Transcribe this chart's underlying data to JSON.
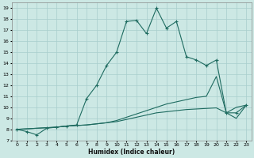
{
  "xlabel": "Humidex (Indice chaleur)",
  "background_color": "#cce8e4",
  "grid_color": "#a8cecc",
  "line_color": "#1e6b60",
  "xlim": [
    -0.5,
    23.5
  ],
  "ylim": [
    7,
    19.5
  ],
  "xticks": [
    0,
    1,
    2,
    3,
    4,
    5,
    6,
    7,
    8,
    9,
    10,
    11,
    12,
    13,
    14,
    15,
    16,
    17,
    18,
    19,
    20,
    21,
    22,
    23
  ],
  "yticks": [
    7,
    8,
    9,
    10,
    11,
    12,
    13,
    14,
    15,
    16,
    17,
    18,
    19
  ],
  "series1": [
    [
      0,
      8.0
    ],
    [
      1,
      7.8
    ],
    [
      2,
      7.5
    ],
    [
      3,
      8.1
    ],
    [
      4,
      8.2
    ],
    [
      5,
      8.3
    ],
    [
      6,
      8.4
    ],
    [
      7,
      10.8
    ],
    [
      8,
      12.0
    ],
    [
      9,
      13.8
    ],
    [
      10,
      15.0
    ],
    [
      11,
      17.8
    ],
    [
      12,
      17.9
    ],
    [
      13,
      16.7
    ],
    [
      14,
      19.0
    ],
    [
      15,
      17.2
    ],
    [
      16,
      17.8
    ],
    [
      17,
      14.6
    ],
    [
      18,
      14.3
    ],
    [
      19,
      13.8
    ],
    [
      20,
      14.3
    ],
    [
      21,
      9.5
    ],
    [
      22,
      9.5
    ],
    [
      23,
      10.2
    ]
  ],
  "series2": [
    [
      0,
      8.0
    ],
    [
      4,
      8.2
    ],
    [
      5,
      8.3
    ],
    [
      6,
      8.35
    ],
    [
      7,
      8.4
    ],
    [
      8,
      8.5
    ],
    [
      9,
      8.6
    ],
    [
      10,
      8.7
    ],
    [
      11,
      8.9
    ],
    [
      12,
      9.1
    ],
    [
      13,
      9.3
    ],
    [
      14,
      9.5
    ],
    [
      15,
      9.6
    ],
    [
      16,
      9.7
    ],
    [
      17,
      9.8
    ],
    [
      18,
      9.85
    ],
    [
      19,
      9.9
    ],
    [
      20,
      9.95
    ],
    [
      21,
      9.5
    ],
    [
      22,
      9.0
    ],
    [
      23,
      10.2
    ]
  ],
  "series3": [
    [
      0,
      8.0
    ],
    [
      4,
      8.2
    ],
    [
      5,
      8.3
    ],
    [
      6,
      8.35
    ],
    [
      7,
      8.4
    ],
    [
      8,
      8.5
    ],
    [
      9,
      8.6
    ],
    [
      10,
      8.8
    ],
    [
      11,
      9.1
    ],
    [
      12,
      9.4
    ],
    [
      13,
      9.7
    ],
    [
      14,
      10.0
    ],
    [
      15,
      10.3
    ],
    [
      16,
      10.5
    ],
    [
      17,
      10.7
    ],
    [
      18,
      10.9
    ],
    [
      19,
      11.0
    ],
    [
      20,
      12.8
    ],
    [
      21,
      9.5
    ],
    [
      22,
      10.0
    ],
    [
      23,
      10.2
    ]
  ]
}
